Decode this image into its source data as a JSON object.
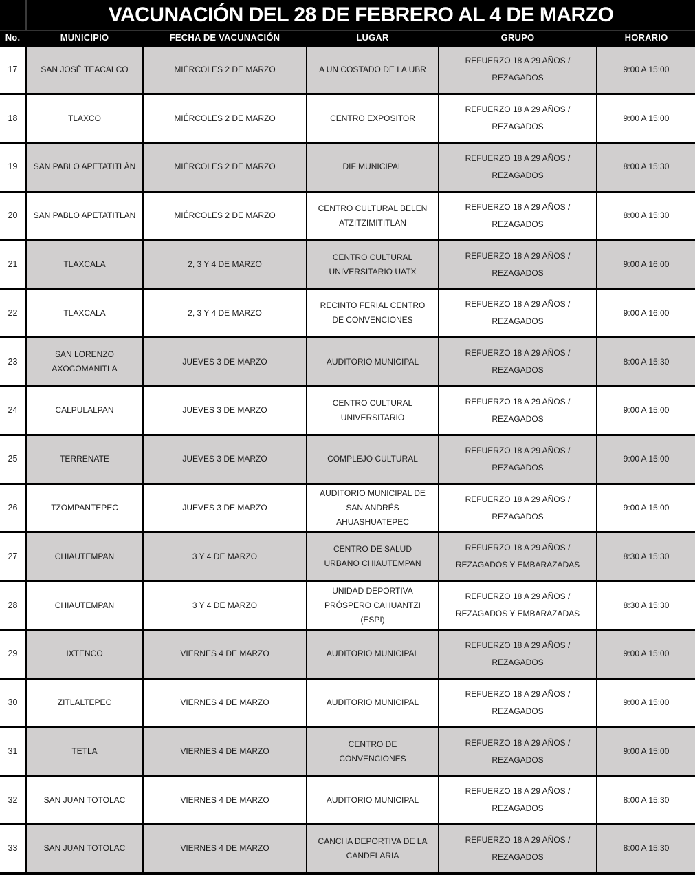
{
  "title": "VACUNACIÓN DEL 28 DE FEBRERO AL 4 DE MARZO",
  "colors": {
    "header_bg": "#000000",
    "header_text": "#ffffff",
    "shaded_row_bg": "#d1cfcf",
    "plain_row_bg": "#ffffff",
    "border": "#000000",
    "body_text": "#1c1c1c"
  },
  "table": {
    "columns": [
      "No.",
      "MUNICIPIO",
      "FECHA DE VACUNACIÓN",
      "LUGAR",
      "GRUPO",
      "HORARIO"
    ],
    "rows": [
      {
        "no": "17",
        "municipio": "SAN JOSÉ TEACALCO",
        "fecha": "MIÉRCOLES 2 DE MARZO",
        "lugar": "A UN COSTADO DE LA UBR",
        "grupo": "REFUERZO 18 A 29 AÑOS / REZAGADOS",
        "horario": "9:00 A 15:00",
        "shaded": true
      },
      {
        "no": "18",
        "municipio": "TLAXCO",
        "fecha": "MIÉRCOLES 2 DE MARZO",
        "lugar": "CENTRO EXPOSITOR",
        "grupo": "REFUERZO 18 A 29 AÑOS / REZAGADOS",
        "horario": "9:00 A 15:00",
        "shaded": false
      },
      {
        "no": "19",
        "municipio": "SAN PABLO APETATITLÁN",
        "fecha": "MIÉRCOLES 2 DE MARZO",
        "lugar": "DIF MUNICIPAL",
        "grupo": "REFUERZO 18 A 29 AÑOS / REZAGADOS",
        "horario": "8:00 A 15:30",
        "shaded": true
      },
      {
        "no": "20",
        "municipio": "SAN PABLO APETATITLAN",
        "fecha": "MIÉRCOLES 2 DE MARZO",
        "lugar": "CENTRO CULTURAL BELEN ATZITZIMITITLAN",
        "grupo": "REFUERZO 18 A 29 AÑOS / REZAGADOS",
        "horario": "8:00 A 15:30",
        "shaded": false
      },
      {
        "no": "21",
        "municipio": "TLAXCALA",
        "fecha": "2, 3 Y 4 DE MARZO",
        "lugar": "CENTRO CULTURAL UNIVERSITARIO UATX",
        "grupo": "REFUERZO 18 A 29 AÑOS / REZAGADOS",
        "horario": "9:00 A 16:00",
        "shaded": true
      },
      {
        "no": "22",
        "municipio": "TLAXCALA",
        "fecha": "2, 3 Y 4 DE MARZO",
        "lugar": "RECINTO FERIAL CENTRO DE CONVENCIONES",
        "grupo": "REFUERZO 18 A 29 AÑOS / REZAGADOS",
        "horario": "9:00 A 16:00",
        "shaded": false
      },
      {
        "no": "23",
        "municipio": "SAN LORENZO AXOCOMANITLA",
        "fecha": "JUEVES 3 DE MARZO",
        "lugar": "AUDITORIO MUNICIPAL",
        "grupo": "REFUERZO 18 A 29 AÑOS / REZAGADOS",
        "horario": "8:00 A 15:30",
        "shaded": true
      },
      {
        "no": "24",
        "municipio": "CALPULALPAN",
        "fecha": "JUEVES 3 DE MARZO",
        "lugar": "CENTRO CULTURAL UNIVERSITARIO",
        "grupo": "REFUERZO 18 A 29 AÑOS / REZAGADOS",
        "horario": "9:00 A 15:00",
        "shaded": false
      },
      {
        "no": "25",
        "municipio": "TERRENATE",
        "fecha": "JUEVES 3 DE MARZO",
        "lugar": "COMPLEJO CULTURAL",
        "grupo": "REFUERZO 18 A 29 AÑOS / REZAGADOS",
        "horario": "9:00 A 15:00",
        "shaded": true
      },
      {
        "no": "26",
        "municipio": "TZOMPANTEPEC",
        "fecha": "JUEVES 3 DE MARZO",
        "lugar": "AUDITORIO MUNICIPAL DE SAN ANDRÉS AHUASHUATEPEC",
        "grupo": "REFUERZO 18 A 29 AÑOS / REZAGADOS",
        "horario": "9:00 A 15:00",
        "shaded": false
      },
      {
        "no": "27",
        "municipio": "CHIAUTEMPAN",
        "fecha": "3 Y 4 DE MARZO",
        "lugar": "CENTRO DE SALUD URBANO CHIAUTEMPAN",
        "grupo": "REFUERZO 18 A 29 AÑOS / REZAGADOS Y EMBARAZADAS",
        "horario": "8:30 A 15:30",
        "shaded": true
      },
      {
        "no": "28",
        "municipio": "CHIAUTEMPAN",
        "fecha": "3 Y 4 DE MARZO",
        "lugar": "UNIDAD DEPORTIVA PRÓSPERO CAHUANTZI (ESPI)",
        "grupo": "REFUERZO 18 A 29 AÑOS / REZAGADOS Y EMBARAZADAS",
        "horario": "8:30 A 15:30",
        "shaded": false
      },
      {
        "no": "29",
        "municipio": "IXTENCO",
        "fecha": "VIERNES 4 DE MARZO",
        "lugar": "AUDITORIO MUNICIPAL",
        "grupo": "REFUERZO 18 A 29 AÑOS / REZAGADOS",
        "horario": "9:00 A 15:00",
        "shaded": true
      },
      {
        "no": "30",
        "municipio": "ZITLALTEPEC",
        "fecha": "VIERNES 4 DE MARZO",
        "lugar": "AUDITORIO MUNICIPAL",
        "grupo": "REFUERZO 18 A 29 AÑOS / REZAGADOS",
        "horario": "9:00 A 15:00",
        "shaded": false
      },
      {
        "no": "31",
        "municipio": "TETLA",
        "fecha": "VIERNES 4 DE MARZO",
        "lugar": "CENTRO DE CONVENCIONES",
        "grupo": "REFUERZO 18 A 29 AÑOS / REZAGADOS",
        "horario": "9:00 A 15:00",
        "shaded": true
      },
      {
        "no": "32",
        "municipio": "SAN JUAN TOTOLAC",
        "fecha": "VIERNES 4 DE MARZO",
        "lugar": "AUDITORIO MUNICIPAL",
        "grupo": "REFUERZO 18 A 29 AÑOS / REZAGADOS",
        "horario": "8:00 A 15:30",
        "shaded": false
      },
      {
        "no": "33",
        "municipio": "SAN JUAN TOTOLAC",
        "fecha": "VIERNES 4 DE MARZO",
        "lugar": "CANCHA DEPORTIVA DE LA CANDELARIA",
        "grupo": "REFUERZO 18 A 29 AÑOS / REZAGADOS",
        "horario": "8:00 A 15:30",
        "shaded": true
      }
    ]
  }
}
